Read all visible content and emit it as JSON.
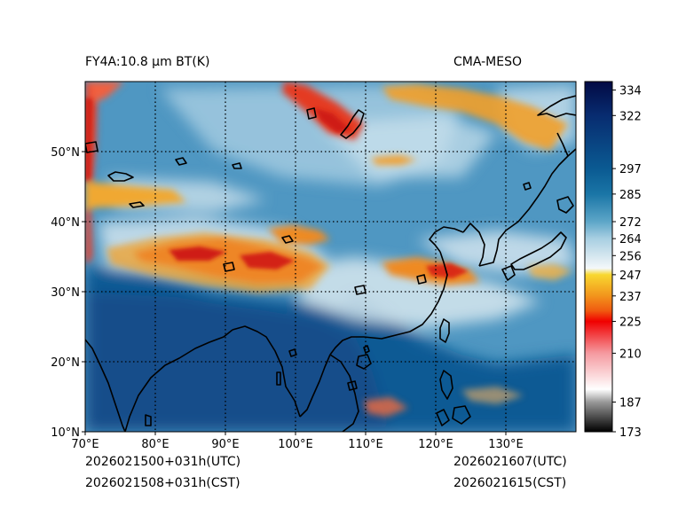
{
  "header": {
    "product_title": "FY4A:10.8 µm BT(K)",
    "model_name": "CMA-MESO"
  },
  "footer": {
    "init_utc": "2026021500+031h(UTC)",
    "init_cst": "2026021508+031h(CST)",
    "valid_utc": "2026021607(UTC)",
    "valid_cst": "2026021615(CST)"
  },
  "map": {
    "lon_range": [
      70,
      140
    ],
    "lat_range": [
      10,
      60
    ],
    "lon_ticks": [
      {
        "value": 70,
        "label": "70°E"
      },
      {
        "value": 80,
        "label": "80°E"
      },
      {
        "value": 90,
        "label": "90°E"
      },
      {
        "value": 100,
        "label": "100°E"
      },
      {
        "value": 110,
        "label": "110°E"
      },
      {
        "value": 120,
        "label": "120°E"
      },
      {
        "value": 130,
        "label": "130°E"
      }
    ],
    "lat_ticks": [
      {
        "value": 10,
        "label": "10°N"
      },
      {
        "value": 20,
        "label": "20°N"
      },
      {
        "value": 30,
        "label": "30°N"
      },
      {
        "value": 40,
        "label": "40°N"
      },
      {
        "value": 50,
        "label": "50°N"
      }
    ],
    "gridlines": "dotted"
  },
  "colorbar": {
    "range": [
      173,
      338
    ],
    "stops": [
      {
        "value": 173,
        "color": "#000000"
      },
      {
        "value": 187,
        "color": "#999999"
      },
      {
        "value": 193,
        "color": "#ffffff"
      },
      {
        "value": 210,
        "color": "#f59aa0"
      },
      {
        "value": 225,
        "color": "#f00000"
      },
      {
        "value": 230,
        "color": "#f05a10"
      },
      {
        "value": 237,
        "color": "#f2941c"
      },
      {
        "value": 247,
        "color": "#f8d830"
      },
      {
        "value": 250,
        "color": "#f4f8fa"
      },
      {
        "value": 256,
        "color": "#d4e6ef"
      },
      {
        "value": 264,
        "color": "#a8cfe2"
      },
      {
        "value": 272,
        "color": "#5da6c8"
      },
      {
        "value": 285,
        "color": "#1a75a6"
      },
      {
        "value": 297,
        "color": "#0a5a92"
      },
      {
        "value": 322,
        "color": "#082c70"
      },
      {
        "value": 338,
        "color": "#020a44"
      }
    ],
    "tick_values": [
      334,
      322,
      297,
      285,
      272,
      264,
      256,
      247,
      237,
      225,
      210,
      187,
      173
    ]
  },
  "colors": {
    "cold_cloud": "#e43428",
    "mid_cloud": "#f2a830",
    "thin_cloud": "#cfe4ee",
    "clear_land": "#4a95c0",
    "warm_surface": "#0b5a94",
    "coastline": "#000000"
  }
}
